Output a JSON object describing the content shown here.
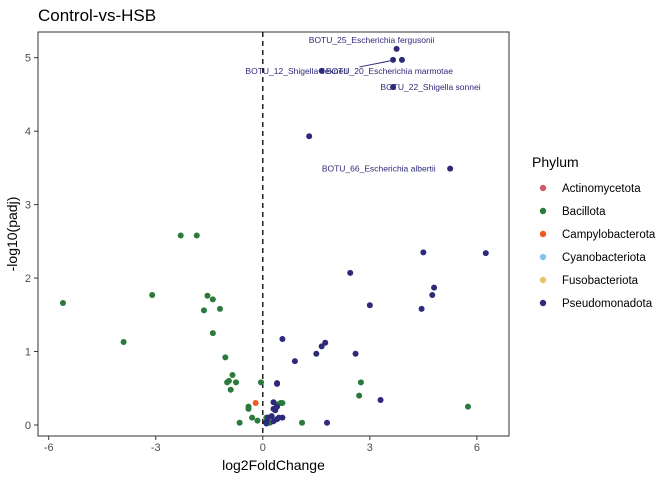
{
  "chart_data": {
    "type": "scatter",
    "title": "Control-vs-HSB",
    "xlabel": "log2FoldChange",
    "ylabel": "-log10(padj)",
    "xlim": [
      -6.3,
      6.9
    ],
    "ylim": [
      -0.15,
      5.35
    ],
    "xticks": [
      -6,
      -3,
      0,
      3,
      6
    ],
    "xtick_labels": [
      "-6",
      "-3",
      "0",
      "3",
      "6"
    ],
    "yticks": [
      0,
      1,
      2,
      3,
      4,
      5
    ],
    "ytick_labels": [
      "0",
      "1",
      "2",
      "3",
      "4",
      "5"
    ],
    "vline": 0,
    "grid": false,
    "legend_placement": "right",
    "legend": {
      "title": "Phylum",
      "entries": [
        {
          "name": "Actinomycetota",
          "color": "#d1596b"
        },
        {
          "name": "Bacillota",
          "color": "#2a7a3b"
        },
        {
          "name": "Campylobacterota",
          "color": "#f05a1e"
        },
        {
          "name": "Cyanobacteriota",
          "color": "#80c6f0"
        },
        {
          "name": "Fusobacteriota",
          "color": "#e8c46a"
        },
        {
          "name": "Pseudomonadota",
          "color": "#2d2a7a"
        }
      ]
    },
    "series": [
      {
        "name": "Bacillota",
        "color": "#2a7a3b",
        "points": [
          [
            -5.6,
            1.66
          ],
          [
            -3.9,
            1.13
          ],
          [
            -3.1,
            1.77
          ],
          [
            -2.3,
            2.58
          ],
          [
            -1.85,
            2.58
          ],
          [
            -1.55,
            1.76
          ],
          [
            -1.4,
            1.71
          ],
          [
            -1.2,
            1.58
          ],
          [
            -1.65,
            1.56
          ],
          [
            -1.4,
            1.25
          ],
          [
            -1.05,
            0.92
          ],
          [
            -0.95,
            0.6
          ],
          [
            -0.85,
            0.68
          ],
          [
            -0.75,
            0.58
          ],
          [
            -1.0,
            0.58
          ],
          [
            -0.9,
            0.48
          ],
          [
            -0.05,
            0.58
          ],
          [
            -0.4,
            0.25
          ],
          [
            -0.4,
            0.22
          ],
          [
            -0.3,
            0.1
          ],
          [
            -0.65,
            0.03
          ],
          [
            -0.15,
            0.06
          ],
          [
            0.1,
            0.1
          ],
          [
            0.2,
            0.03
          ],
          [
            0.4,
            0.28
          ],
          [
            0.5,
            0.3
          ],
          [
            0.55,
            0.3
          ],
          [
            1.1,
            0.03
          ],
          [
            2.75,
            0.58
          ],
          [
            2.7,
            0.4
          ],
          [
            5.75,
            0.25
          ]
        ]
      },
      {
        "name": "Campylobacterota",
        "color": "#f05a1e",
        "points": [
          [
            -0.2,
            0.3
          ]
        ]
      },
      {
        "name": "Pseudomonadota",
        "color": "#2d2a7a",
        "points": [
          [
            3.75,
            5.12
          ],
          [
            3.65,
            4.97
          ],
          [
            3.9,
            4.97
          ],
          [
            1.65,
            4.82
          ],
          [
            3.65,
            4.6
          ],
          [
            1.3,
            3.93
          ],
          [
            5.25,
            3.49
          ],
          [
            2.45,
            2.07
          ],
          [
            4.5,
            2.35
          ],
          [
            6.25,
            2.34
          ],
          [
            4.8,
            1.87
          ],
          [
            4.75,
            1.77
          ],
          [
            3.0,
            1.63
          ],
          [
            4.45,
            1.58
          ],
          [
            0.55,
            1.17
          ],
          [
            1.65,
            1.07
          ],
          [
            1.75,
            1.12
          ],
          [
            1.5,
            0.97
          ],
          [
            2.6,
            0.97
          ],
          [
            0.9,
            0.87
          ],
          [
            0.4,
            0.57
          ],
          [
            0.4,
            0.56
          ],
          [
            3.3,
            0.34
          ],
          [
            0.3,
            0.31
          ],
          [
            0.3,
            0.22
          ],
          [
            0.4,
            0.25
          ],
          [
            0.35,
            0.2
          ],
          [
            0.25,
            0.12
          ],
          [
            0.45,
            0.1
          ],
          [
            0.15,
            0.1
          ],
          [
            0.3,
            0.05
          ],
          [
            0.1,
            0.04
          ],
          [
            0.4,
            0.08
          ],
          [
            0.1,
            0.02
          ],
          [
            1.8,
            0.03
          ],
          [
            0.55,
            0.1
          ]
        ]
      }
    ],
    "annotations": [
      {
        "text": "BOTU_25_Escherichia fergusonii",
        "point": [
          3.75,
          5.12
        ],
        "label_xy": [
          3.05,
          5.24
        ],
        "anchor": "middle",
        "leader": false
      },
      {
        "text": "BOTU_12_Shigella flexneri",
        "point": [
          1.65,
          4.82
        ],
        "label_xy": [
          0.95,
          4.82
        ],
        "anchor": "middle",
        "leader": false
      },
      {
        "text": "BOTU_20_Escherichia marmotae",
        "point": [
          3.65,
          4.97
        ],
        "label_xy": [
          3.55,
          4.82
        ],
        "anchor": "middle",
        "leader": true
      },
      {
        "text": "BOTU_22_Shigella sonnei",
        "point": [
          3.65,
          4.6
        ],
        "label_xy": [
          4.7,
          4.6
        ],
        "anchor": "middle",
        "leader": false
      },
      {
        "text": "BOTU_66_Escherichia albertii",
        "point": [
          5.25,
          3.49
        ],
        "label_xy": [
          3.25,
          3.49
        ],
        "anchor": "middle",
        "leader": false
      }
    ]
  }
}
